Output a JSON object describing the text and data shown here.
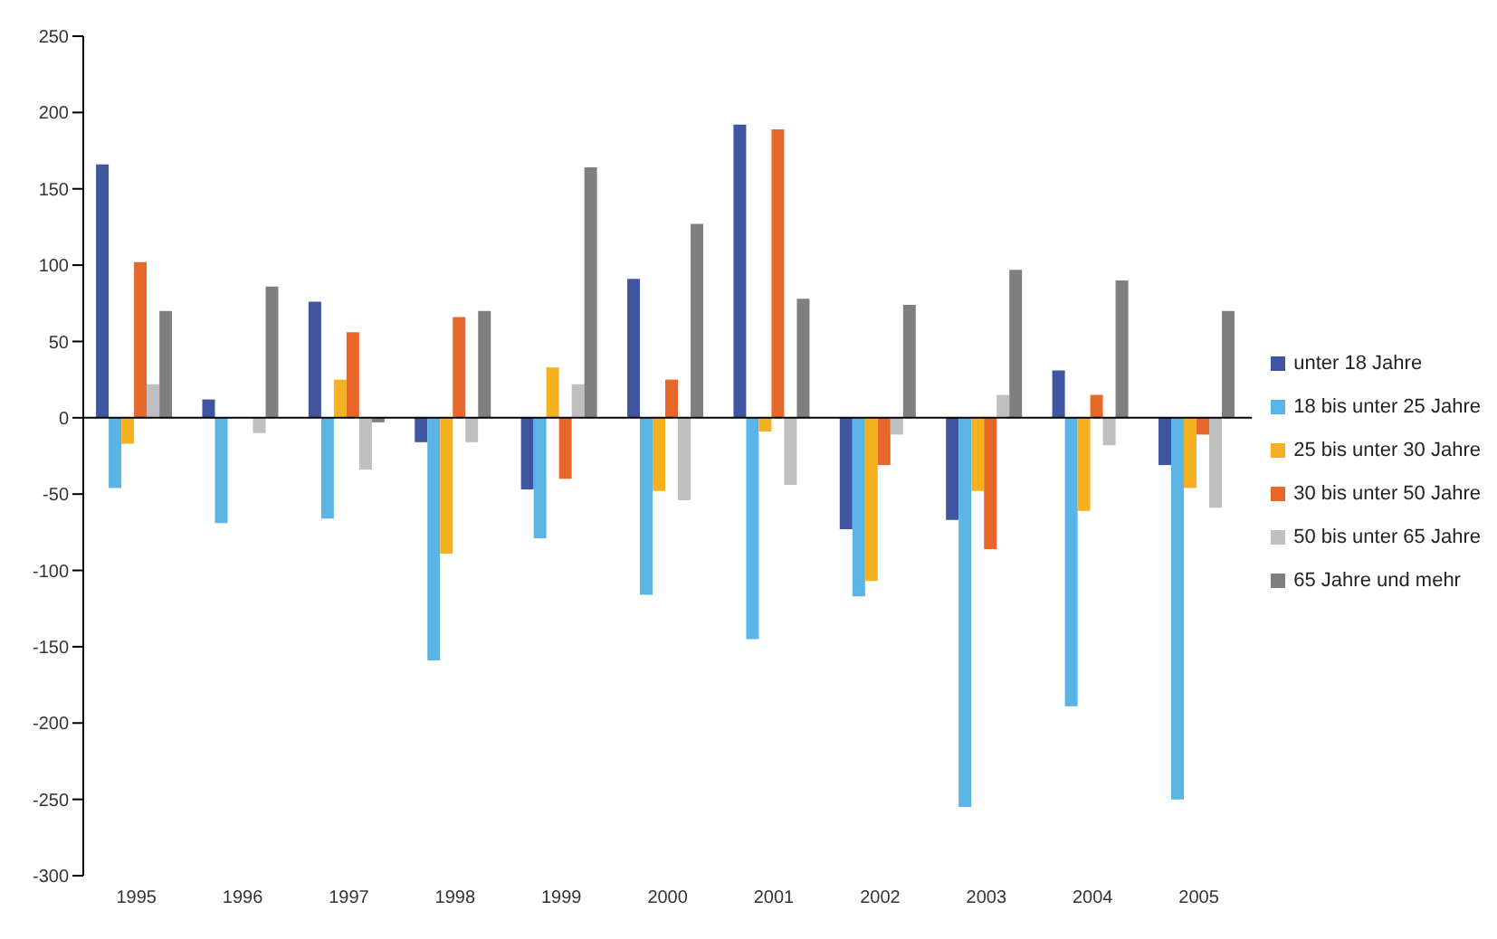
{
  "chart_data": {
    "type": "bar",
    "categories": [
      "1995",
      "1996",
      "1997",
      "1998",
      "1999",
      "2000",
      "2001",
      "2002",
      "2003",
      "2004",
      "2005"
    ],
    "series": [
      {
        "name": "unter 18 Jahre",
        "color": "#3f55a0",
        "values": [
          166,
          12,
          76,
          -16,
          -47,
          91,
          192,
          -73,
          -67,
          31,
          -31
        ]
      },
      {
        "name": "18 bis unter 25 Jahre",
        "color": "#5ab4e5",
        "values": [
          -46,
          -69,
          -66,
          -159,
          -79,
          -116,
          -145,
          -117,
          -255,
          -189,
          -250
        ]
      },
      {
        "name": "25 bis unter 30 Jahre",
        "color": "#f5b120",
        "values": [
          -17,
          null,
          25,
          -89,
          33,
          -48,
          -9,
          -107,
          -48,
          -61,
          -46
        ]
      },
      {
        "name": "30 bis unter 50 Jahre",
        "color": "#e8672b",
        "values": [
          102,
          null,
          56,
          66,
          -40,
          25,
          189,
          -31,
          -86,
          15,
          -11
        ]
      },
      {
        "name": "50 bis unter 65 Jahre",
        "color": "#bfbfbf",
        "values": [
          22,
          -10,
          -34,
          -16,
          22,
          -54,
          -44,
          -11,
          15,
          -18,
          -59
        ]
      },
      {
        "name": "65 Jahre und mehr",
        "color": "#7f7f7f",
        "values": [
          70,
          86,
          -3,
          70,
          164,
          127,
          78,
          74,
          97,
          90,
          70
        ]
      }
    ],
    "ylim": [
      -300,
      250
    ],
    "yticks": [
      -300,
      -250,
      -200,
      -150,
      -100,
      -50,
      0,
      50,
      100,
      150,
      200,
      250
    ],
    "ref_lines": [
      {
        "axis": "y",
        "value": 0,
        "color": "#000000"
      }
    ],
    "legend": "right"
  }
}
